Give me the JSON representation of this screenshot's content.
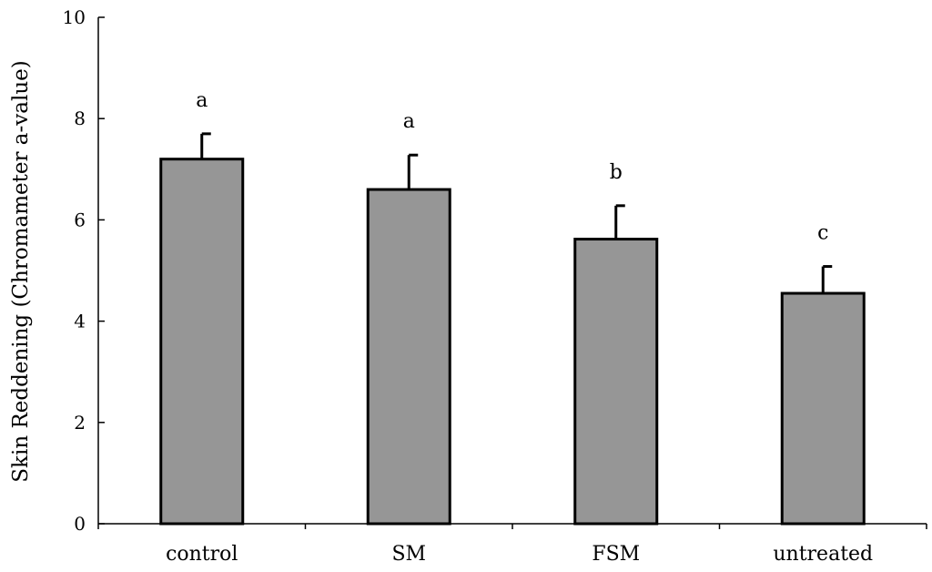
{
  "chart_data": {
    "type": "bar",
    "title": "",
    "xlabel": "",
    "ylabel": "Skin Reddening (Chromameter a-value)",
    "categories": [
      "control",
      "SM",
      "FSM",
      "untreated"
    ],
    "values": [
      7.2,
      6.6,
      5.62,
      4.55
    ],
    "error_upper": [
      0.5,
      0.68,
      0.66,
      0.53
    ],
    "significance_letters": [
      "a",
      "a",
      "b",
      "c"
    ],
    "ylim": [
      0,
      10
    ],
    "yticks": [
      "0",
      "2",
      "4",
      "6",
      "8",
      "10"
    ],
    "grid": false,
    "bar_color": "#969696"
  }
}
